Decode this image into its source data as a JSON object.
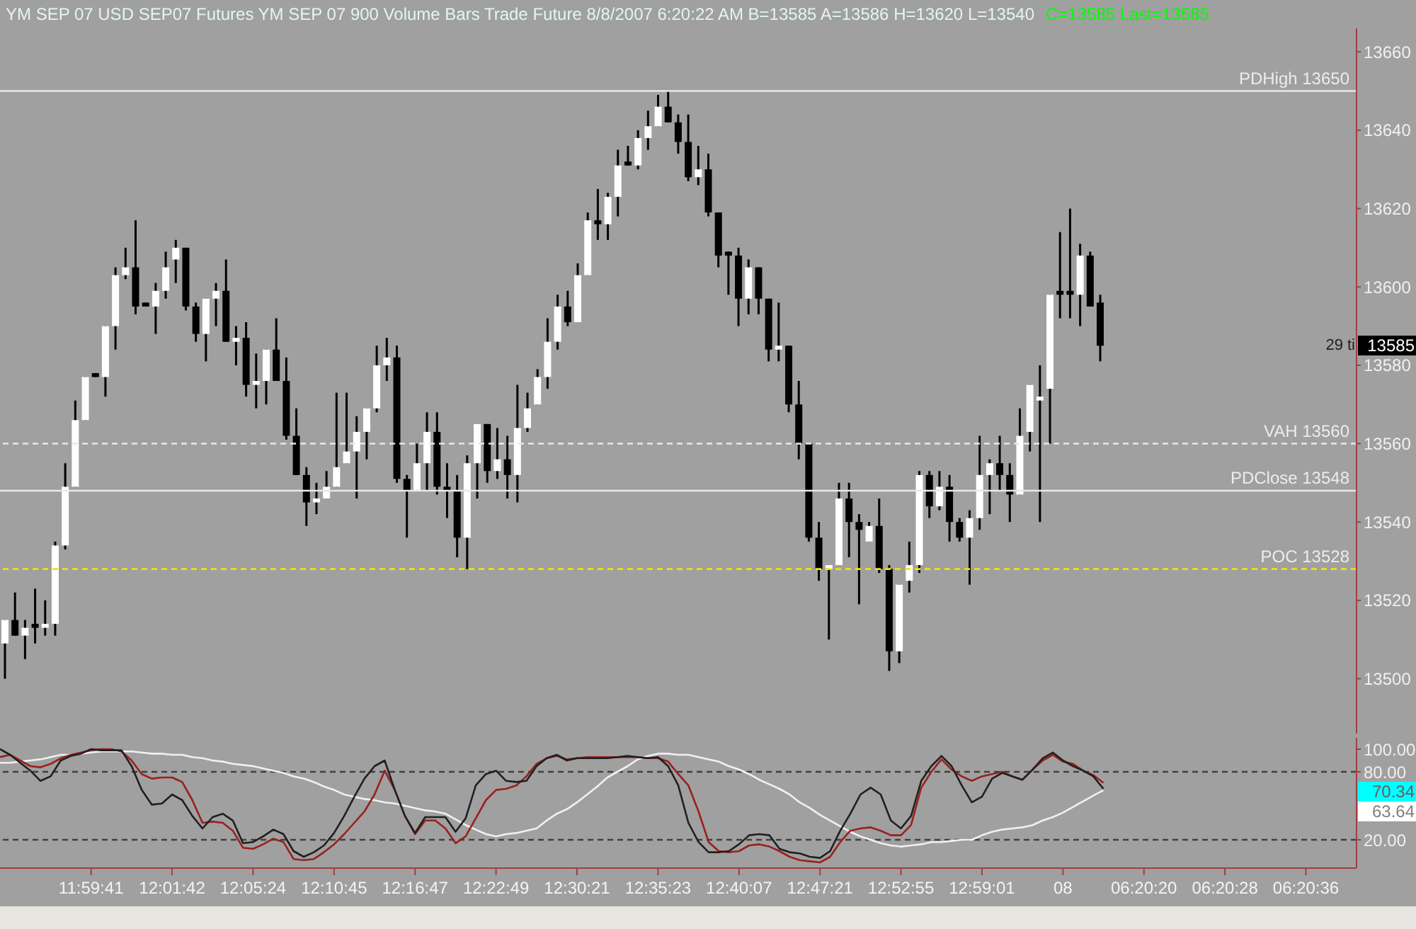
{
  "chart_data": [
    {
      "type": "candlestick",
      "title": "YM SEP 07 USD SEP07 Futures YM SEP 07 900 Volume Bars Trade Future 8/8/2007 6:20:22 AM B=13585 A=13586 H=13620 L=13540",
      "subtitle": "C=13585 Last=13585",
      "categories": [
        null,
        null,
        null,
        null,
        null,
        null,
        null,
        null,
        null,
        null,
        null,
        null,
        null,
        null,
        null,
        null,
        null,
        null,
        null,
        null,
        null,
        null,
        null,
        null,
        null,
        null,
        null,
        null,
        null,
        null,
        null,
        null,
        null,
        null,
        null,
        null,
        null,
        null,
        null,
        null,
        null,
        null,
        null,
        null,
        null,
        null,
        null,
        null,
        null,
        null,
        null,
        null,
        null,
        null,
        null,
        null,
        null,
        null,
        null,
        null,
        null,
        null,
        null,
        null,
        null,
        null,
        null,
        null,
        null,
        null,
        null,
        null,
        null,
        null,
        null,
        null,
        null,
        null,
        null,
        null,
        null,
        null,
        null,
        null,
        null,
        null,
        null,
        null,
        null,
        null,
        null,
        null,
        null,
        null,
        null,
        null,
        null,
        null,
        null,
        null,
        null,
        null,
        null,
        null,
        null,
        null,
        null,
        null,
        null,
        null,
        null,
        null,
        null,
        null,
        null,
        null,
        null,
        null,
        null,
        null,
        null,
        null,
        null,
        null,
        null,
        null,
        null,
        null,
        null,
        null,
        null,
        null,
        null,
        null,
        null
      ],
      "ohlc": [
        [
          13509,
          13515,
          13500,
          13515
        ],
        [
          13515,
          13522,
          13511,
          13511
        ],
        [
          13511,
          13515,
          13505,
          13513
        ],
        [
          13514,
          13523,
          13509,
          13513
        ],
        [
          13513,
          13520,
          13511,
          13514
        ],
        [
          13514,
          13535,
          13511,
          13534
        ],
        [
          13534,
          13555,
          13533,
          13549
        ],
        [
          13549,
          13571,
          13549,
          13566
        ],
        [
          13566,
          13577,
          13566,
          13577
        ],
        [
          13578,
          13578,
          13577,
          13577
        ],
        [
          13577,
          13590,
          13572,
          13590
        ],
        [
          13590,
          13605,
          13584,
          13603
        ],
        [
          13603,
          13610,
          13602,
          13605
        ],
        [
          13605,
          13617,
          13593,
          13595
        ],
        [
          13596,
          13596,
          13595,
          13595
        ],
        [
          13595,
          13601,
          13588,
          13599
        ],
        [
          13599,
          13609,
          13597,
          13605
        ],
        [
          13607,
          13612,
          13601,
          13610
        ],
        [
          13610,
          13610,
          13594,
          13595
        ],
        [
          13595,
          13596,
          13586,
          13588
        ],
        [
          13588,
          13597,
          13581,
          13597
        ],
        [
          13597,
          13601,
          13590,
          13599
        ],
        [
          13599,
          13607,
          13586,
          13586
        ],
        [
          13586,
          13590,
          13580,
          13587
        ],
        [
          13587,
          13591,
          13572,
          13575
        ],
        [
          13575,
          13583,
          13569,
          13576
        ],
        [
          13576,
          13584,
          13570,
          13584
        ],
        [
          13584,
          13592,
          13576,
          13576
        ],
        [
          13576,
          13582,
          13561,
          13562
        ],
        [
          13562,
          13569,
          13552,
          13552
        ],
        [
          13552,
          13554,
          13539,
          13545
        ],
        [
          13545,
          13550,
          13542,
          13546
        ],
        [
          13546,
          13553,
          13546,
          13549
        ],
        [
          13549,
          13573,
          13549,
          13554
        ],
        [
          13555,
          13573,
          13555,
          13558
        ],
        [
          13558,
          13567,
          13546,
          13563
        ],
        [
          13563,
          13569,
          13556,
          13569
        ],
        [
          13569,
          13585,
          13568,
          13580
        ],
        [
          13580,
          13587,
          13576,
          13582
        ],
        [
          13582,
          13585,
          13550,
          13551
        ],
        [
          13551,
          13552,
          13536,
          13548
        ],
        [
          13548,
          13560,
          13548,
          13555
        ],
        [
          13555,
          13568,
          13548,
          13563
        ],
        [
          13563,
          13568,
          13547,
          13549
        ],
        [
          13549,
          13555,
          13541,
          13548
        ],
        [
          13548,
          13552,
          13531,
          13536
        ],
        [
          13536,
          13557,
          13528,
          13555
        ],
        [
          13555,
          13565,
          13546,
          13565
        ],
        [
          13565,
          13565,
          13550,
          13553
        ],
        [
          13553,
          13564,
          13551,
          13556
        ],
        [
          13556,
          13562,
          13546,
          13552
        ],
        [
          13552,
          13575,
          13545,
          13564
        ],
        [
          13564,
          13573,
          13563,
          13569
        ],
        [
          13570,
          13579,
          13570,
          13577
        ],
        [
          13577,
          13592,
          13574,
          13586
        ],
        [
          13586,
          13598,
          13584,
          13595
        ],
        [
          13595,
          13599,
          13590,
          13591
        ],
        [
          13591,
          13606,
          13591,
          13603
        ],
        [
          13603,
          13619,
          13603,
          13617
        ],
        [
          13617,
          13625,
          13612,
          13616
        ],
        [
          13616,
          13624,
          13612,
          13623
        ],
        [
          13623,
          13635,
          13618,
          13631
        ],
        [
          13632,
          13636,
          13631,
          13631
        ],
        [
          13631,
          13640,
          13630,
          13638
        ],
        [
          13638,
          13645,
          13635,
          13641
        ],
        [
          13641,
          13649,
          13641,
          13646
        ],
        [
          13646,
          13650,
          13642,
          13642
        ],
        [
          13642,
          13644,
          13634,
          13637
        ],
        [
          13637,
          13644,
          13627,
          13628
        ],
        [
          13628,
          13636,
          13626,
          13630
        ],
        [
          13630,
          13634,
          13618,
          13619
        ],
        [
          13619,
          13619,
          13605,
          13608
        ],
        [
          13609,
          13609,
          13598,
          13608
        ],
        [
          13608,
          13610,
          13590,
          13597
        ],
        [
          13597,
          13607,
          13593,
          13605
        ],
        [
          13605,
          13605,
          13593,
          13597
        ],
        [
          13597,
          13597,
          13581,
          13584
        ],
        [
          13584,
          13596,
          13581,
          13585
        ],
        [
          13585,
          13585,
          13568,
          13570
        ],
        [
          13570,
          13576,
          13556,
          13560
        ],
        [
          13560,
          13560,
          13535,
          13536
        ],
        [
          13536,
          13540,
          13525,
          13528
        ],
        [
          13528,
          13529,
          13510,
          13529
        ],
        [
          13529,
          13550,
          13529,
          13546
        ],
        [
          13546,
          13550,
          13531,
          13540
        ],
        [
          13540,
          13542,
          13519,
          13538
        ],
        [
          13535,
          13540,
          13535,
          13539
        ],
        [
          13539,
          13546,
          13527,
          13528
        ],
        [
          13528,
          13529,
          13502,
          13507
        ],
        [
          13507,
          13524,
          13504,
          13524
        ],
        [
          13525,
          13535,
          13522,
          13529
        ],
        [
          13529,
          13553,
          13527,
          13552
        ],
        [
          13552,
          13553,
          13541,
          13544
        ],
        [
          13544,
          13553,
          13543,
          13549
        ],
        [
          13549,
          13552,
          13535,
          13540
        ],
        [
          13540,
          13541,
          13535,
          13536
        ],
        [
          13536,
          13543,
          13524,
          13541
        ],
        [
          13541,
          13562,
          13538,
          13552
        ],
        [
          13552,
          13556,
          13542,
          13555
        ],
        [
          13555,
          13562,
          13548,
          13552
        ],
        [
          13552,
          13555,
          13540,
          13547
        ],
        [
          13547,
          13569,
          13547,
          13562
        ],
        [
          13563,
          13575,
          13558,
          13575
        ],
        [
          13571,
          13580,
          13540,
          13572
        ],
        [
          13574,
          13598,
          13560,
          13598
        ],
        [
          13599,
          13614,
          13592,
          13598
        ],
        [
          13599,
          13620,
          13592,
          13598
        ],
        [
          13598,
          13611,
          13590,
          13608
        ],
        [
          13608,
          13609,
          13595,
          13595
        ],
        [
          13596,
          13598,
          13581,
          13585
        ],
        null,
        null,
        null,
        null,
        null,
        null,
        null,
        null,
        null,
        null,
        null,
        null,
        null,
        null,
        null,
        null,
        null,
        null,
        null,
        null,
        null,
        null,
        null,
        null,
        null
      ],
      "ylim": [
        13486,
        13666
      ],
      "yticks": [
        13500,
        13520,
        13540,
        13560,
        13580,
        13600,
        13620,
        13640,
        13660
      ],
      "tick_labels": "y",
      "ref_lines": [
        {
          "axis": "y",
          "value": 13650,
          "label": "PDHigh 13650",
          "color": "#e8e8e8",
          "line_style": "solid"
        },
        {
          "axis": "y",
          "value": 13560,
          "label": "VAH 13560",
          "color": "#e8e8e8",
          "line_style": "dashed"
        },
        {
          "axis": "y",
          "value": 13548,
          "label": "PDClose 13548",
          "color": "#e8e8e8",
          "line_style": "solid"
        },
        {
          "axis": "y",
          "value": 13528,
          "label": "POC 13528",
          "color": "#e8e800",
          "line_style": "dashed"
        }
      ],
      "annotations": [
        "29 ti",
        "13585"
      ]
    },
    {
      "type": "line",
      "categories": [
        null,
        null,
        null,
        null,
        null,
        null,
        null,
        null,
        null,
        "11:59:41",
        null,
        null,
        null,
        null,
        null,
        null,
        null,
        "12:01:42",
        null,
        null,
        null,
        null,
        null,
        null,
        null,
        "12:05:24",
        null,
        null,
        null,
        null,
        null,
        null,
        null,
        "12:10:45",
        null,
        null,
        null,
        null,
        null,
        null,
        null,
        "12:16:47",
        null,
        null,
        null,
        null,
        null,
        null,
        null,
        "12:22:49",
        null,
        null,
        null,
        null,
        null,
        null,
        null,
        "12:30:21",
        null,
        null,
        null,
        null,
        null,
        null,
        null,
        "12:35:23",
        null,
        null,
        null,
        null,
        null,
        null,
        null,
        "12:40:07",
        null,
        null,
        null,
        null,
        null,
        null,
        null,
        "12:47:21",
        null,
        null,
        null,
        null,
        null,
        null,
        null,
        "12:52:55",
        null,
        null,
        null,
        null,
        null,
        null,
        null,
        "12:59:01",
        null,
        null,
        null,
        null,
        null,
        null,
        null,
        "08",
        null,
        null,
        null,
        null,
        null,
        null,
        null,
        "06:20:20",
        null,
        null,
        null,
        null,
        null,
        null,
        null,
        "06:20:28",
        null,
        null,
        null,
        null,
        null,
        null,
        null,
        "06:20:36",
        null,
        null,
        null,
        null,
        null
      ],
      "series": [
        {
          "color": "#f0f0f0",
          "values": [
            88,
            88,
            89,
            90,
            91,
            93,
            95,
            95,
            96,
            97,
            98,
            98,
            98,
            98,
            97,
            96,
            96,
            95,
            95,
            93,
            92,
            90,
            89,
            87,
            86,
            85,
            83,
            81,
            79,
            76,
            74,
            71,
            67,
            64,
            60,
            58,
            56,
            55,
            53,
            52,
            50,
            48,
            46,
            45,
            43,
            38,
            33,
            29,
            25,
            23,
            25,
            26,
            28,
            30,
            37,
            43,
            47,
            53,
            60,
            67,
            75,
            80,
            85,
            91,
            94,
            96,
            96,
            95,
            95,
            93,
            91,
            89,
            85,
            82,
            78,
            73,
            69,
            65,
            60,
            53,
            48,
            42,
            37,
            32,
            27,
            23,
            20,
            17,
            15,
            14,
            15,
            16,
            18,
            18,
            19,
            20,
            20,
            24,
            27,
            29,
            30,
            31,
            33,
            37,
            40,
            44,
            49,
            54,
            59,
            63.64,
            null,
            null,
            null,
            null,
            null,
            null,
            null,
            null,
            null,
            null,
            null,
            null,
            null,
            null,
            null,
            null,
            null,
            null,
            null,
            null,
            null,
            null,
            null,
            null,
            null
          ]
        },
        {
          "color": "#9a2020",
          "values": [
            93,
            95,
            90,
            85,
            84,
            87,
            92,
            95,
            97,
            99,
            100,
            100,
            98,
            90,
            78,
            74,
            75,
            75,
            71,
            55,
            35,
            36,
            35,
            28,
            13,
            12,
            16,
            21,
            18,
            3,
            2,
            3,
            9,
            16,
            25,
            35,
            45,
            60,
            81,
            64,
            41,
            25,
            37,
            37,
            30,
            17,
            23,
            39,
            55,
            64,
            65,
            68,
            76,
            87,
            92,
            94,
            91,
            92,
            93,
            93,
            93,
            93,
            93,
            93,
            92,
            92,
            89,
            78,
            68,
            45,
            18,
            10,
            9,
            10,
            15,
            16,
            14,
            10,
            5,
            2,
            1,
            0,
            5,
            18,
            28,
            30,
            31,
            28,
            24,
            24,
            33,
            66,
            80,
            91,
            82,
            76,
            72,
            76,
            78,
            80,
            76,
            73,
            82,
            90,
            95,
            89,
            87,
            81,
            77,
            70.34,
            null,
            null,
            null,
            null,
            null,
            null,
            null,
            null,
            null,
            null,
            null,
            null,
            null,
            null,
            null,
            null,
            null,
            null,
            null,
            null,
            null,
            null,
            null,
            null,
            null
          ]
        },
        {
          "color": "#202020",
          "values": [
            100,
            95,
            88,
            81,
            72,
            76,
            90,
            94,
            96,
            100,
            99,
            99,
            99,
            85,
            64,
            51,
            52,
            60,
            55,
            41,
            30,
            40,
            43,
            37,
            17,
            18,
            23,
            29,
            25,
            10,
            5,
            9,
            15,
            26,
            41,
            58,
            74,
            85,
            90,
            64,
            41,
            26,
            40,
            40,
            40,
            27,
            39,
            68,
            78,
            81,
            72,
            71,
            72,
            85,
            92,
            95,
            90,
            92,
            92,
            92,
            92,
            93,
            94,
            93,
            92,
            93,
            85,
            68,
            35,
            18,
            9,
            9,
            10,
            16,
            24,
            25,
            24,
            12,
            9,
            8,
            5,
            4,
            10,
            28,
            43,
            60,
            66,
            60,
            37,
            30,
            41,
            72,
            85,
            94,
            85,
            68,
            53,
            58,
            74,
            79,
            76,
            73,
            82,
            92,
            97,
            90,
            85,
            81,
            76,
            65,
            null,
            null,
            null,
            null,
            null,
            null,
            null,
            null,
            null,
            null,
            null,
            null,
            null,
            null,
            null,
            null,
            null,
            null,
            null,
            null,
            null,
            null,
            null,
            null,
            null
          ]
        }
      ],
      "ylim": [
        -5,
        110
      ],
      "yticks": [
        {
          "value": 100,
          "label": "100.00"
        },
        {
          "value": 80,
          "label": "80.00"
        },
        {
          "value": 20,
          "label": "20.00"
        }
      ],
      "ref_lines": [
        {
          "axis": "y",
          "value": 80,
          "color": "#404040",
          "line_style": "dashed"
        },
        {
          "axis": "y",
          "value": 20,
          "color": "#404040",
          "line_style": "dashed"
        }
      ],
      "annotations": [
        "70.34",
        "63.64"
      ]
    }
  ]
}
